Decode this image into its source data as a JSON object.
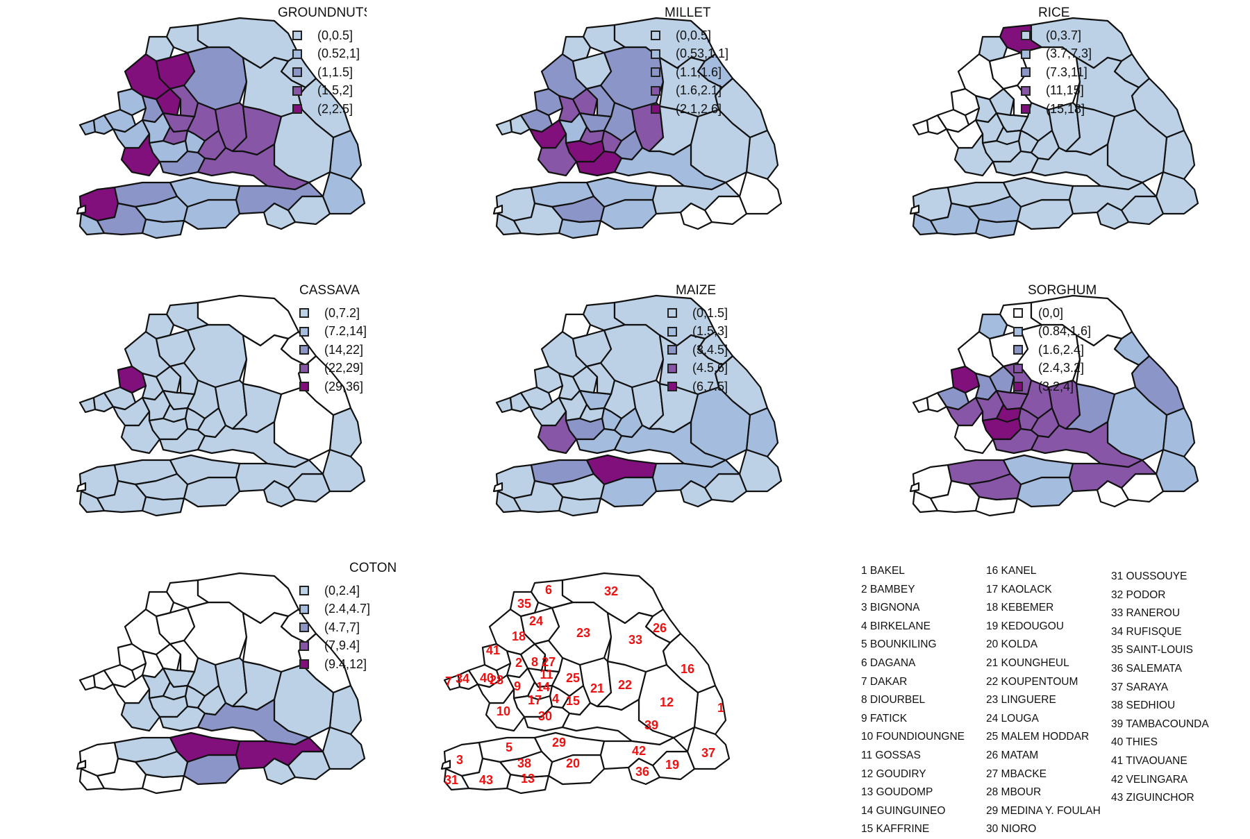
{
  "panels": [
    {
      "id": "groundnuts",
      "title": "GROUNDNUTS",
      "legend": [
        "(0,0.5]",
        "(0.52,1]",
        "(1,1.5]",
        "(1.5,2]",
        "(2,2.5]"
      ],
      "colors": [
        "#bcd0e6",
        "#a4bcdd",
        "#8b95c7",
        "#8856a7",
        "#810f7c"
      ],
      "region_classes": {
        "1": 1,
        "2": 2,
        "3": 4,
        "4": 1,
        "5": 2,
        "6": 0,
        "7": 1,
        "8": 4,
        "9": 1,
        "10": 4,
        "11": 3,
        "12": 0,
        "13": 1,
        "14": 3,
        "15": 3,
        "16": 0,
        "17": 1,
        "18": 4,
        "19": 0,
        "20": 1,
        "21": 3,
        "22": 3,
        "23": 2,
        "24": 4,
        "25": 3,
        "26": 0,
        "27": 3,
        "28": 1,
        "29": 1,
        "30": 2,
        "31": 1,
        "32": 0,
        "33": 0,
        "34": 1,
        "35": 0,
        "36": 0,
        "37": 1,
        "38": 1,
        "39": 3,
        "40": 1,
        "41": 1,
        "42": 2,
        "43": 2
      }
    },
    {
      "id": "millet",
      "title": "MILLET",
      "legend": [
        "(0,0.5]",
        "(0.53,1.1]",
        "(1.1,1.6]",
        "(1.6,2.1]",
        "(2.1,2.6]"
      ],
      "colors": [
        "#bcd0e6",
        "#a4bcdd",
        "#8b95c7",
        "#8856a7",
        "#810f7c"
      ],
      "region_classes": {
        "1": 0,
        "2": 3,
        "3": 0,
        "4": 3,
        "5": 1,
        "6": 0,
        "7": 0,
        "8": 3,
        "9": 1,
        "10": 3,
        "11": 2,
        "12": 0,
        "13": 1,
        "14": 3,
        "15": 2,
        "16": 0,
        "17": 4,
        "18": 2,
        "19": -1,
        "20": 1,
        "21": 3,
        "22": 0,
        "23": 2,
        "24": 0,
        "25": 2,
        "26": 1,
        "27": 2,
        "28": 4,
        "29": 1,
        "30": 4,
        "31": 0,
        "32": 0,
        "33": 0,
        "34": 0,
        "35": 0,
        "36": -1,
        "37": -1,
        "38": 2,
        "39": 1,
        "40": 2,
        "41": 2,
        "42": 0,
        "43": 0
      }
    },
    {
      "id": "rice",
      "title": "RICE",
      "legend": [
        "(0,3.7]",
        "(3.7,7.3]",
        "(7.3,11]",
        "(11,15]",
        "(15,18]"
      ],
      "colors": [
        "#bcd0e6",
        "#a4bcdd",
        "#8b95c7",
        "#8856a7",
        "#810f7c"
      ],
      "region_classes": {
        "1": 0,
        "2": 0,
        "3": 0,
        "4": 0,
        "5": 0,
        "6": 4,
        "7": -1,
        "8": 0,
        "9": 0,
        "10": 0,
        "11": 0,
        "12": 0,
        "13": 1,
        "14": 0,
        "15": 0,
        "16": 0,
        "17": 0,
        "18": -1,
        "19": 0,
        "20": 0,
        "21": 0,
        "22": 0,
        "23": -1,
        "24": -1,
        "25": 0,
        "26": 0,
        "27": -1,
        "28": -1,
        "29": 0,
        "30": 0,
        "31": 1,
        "32": 0,
        "33": 0,
        "34": -1,
        "35": 0,
        "36": 0,
        "37": 0,
        "38": 1,
        "39": 0,
        "40": -1,
        "41": -1,
        "42": 0,
        "43": 1
      }
    },
    {
      "id": "cassava",
      "title": "CASSAVA",
      "legend": [
        "(0,7.2]",
        "(7.2,14]",
        "(14,22]",
        "(22,29]",
        "(29,36]"
      ],
      "colors": [
        "#bcd0e6",
        "#a4bcdd",
        "#8b95c7",
        "#8856a7",
        "#810f7c"
      ],
      "region_classes": {
        "1": 0,
        "2": 0,
        "3": 0,
        "4": 0,
        "5": 0,
        "6": 0,
        "7": 0,
        "8": 0,
        "9": 0,
        "10": 0,
        "11": 0,
        "12": -1,
        "13": 0,
        "14": 0,
        "15": 0,
        "16": -1,
        "17": 0,
        "18": 0,
        "19": 0,
        "20": 0,
        "21": 0,
        "22": 0,
        "23": 0,
        "24": 0,
        "25": 0,
        "26": -1,
        "27": 0,
        "28": 0,
        "29": 0,
        "30": 0,
        "31": 0,
        "32": -1,
        "33": -1,
        "34": 0,
        "35": 0,
        "36": 0,
        "37": 0,
        "38": 0,
        "39": 0,
        "40": 0,
        "41": 4,
        "42": 0,
        "43": 0
      }
    },
    {
      "id": "maize",
      "title": "MAIZE",
      "legend": [
        "(0,1.5]",
        "(1.5,3]",
        "(3,4.5]",
        "(4.5,6]",
        "(6,7.5]"
      ],
      "colors": [
        "#bcd0e6",
        "#a4bcdd",
        "#8b95c7",
        "#8856a7",
        "#810f7c"
      ],
      "region_classes": {
        "1": 1,
        "2": 0,
        "3": 0,
        "4": 1,
        "5": 2,
        "6": 0,
        "7": 0,
        "8": 0,
        "9": 0,
        "10": 3,
        "11": 1,
        "12": 1,
        "13": 0,
        "14": 0,
        "15": 1,
        "16": 0,
        "17": 2,
        "18": 0,
        "19": 0,
        "20": 1,
        "21": 0,
        "22": 0,
        "23": 0,
        "24": 0,
        "25": 0,
        "26": 0,
        "27": 0,
        "28": 0,
        "29": 4,
        "30": 1,
        "31": 0,
        "32": 0,
        "33": 0,
        "34": 0,
        "35": -1,
        "36": 0,
        "37": 0,
        "38": 0,
        "39": 1,
        "40": 0,
        "41": 0,
        "42": 1,
        "43": 0
      }
    },
    {
      "id": "sorghum",
      "title": "SORGHUM",
      "legend": [
        "(0,0]",
        "(0.84,1.6]",
        "(1.6,2.4]",
        "(2.4,3.2]",
        "(3.2,4]"
      ],
      "colors": [
        "#ffffff",
        "#a4bcdd",
        "#8b95c7",
        "#8856a7",
        "#810f7c"
      ],
      "region_classes": {
        "1": 1,
        "2": 2,
        "3": 0,
        "4": 3,
        "5": 3,
        "6": 0,
        "7": 0,
        "8": 2,
        "9": 3,
        "10": 0,
        "11": 3,
        "12": 1,
        "13": 0,
        "14": 4,
        "15": 3,
        "16": 2,
        "17": 4,
        "18": 0,
        "19": 0,
        "20": 1,
        "21": 3,
        "22": 2,
        "23": 0,
        "24": 0,
        "25": 3,
        "26": 1,
        "27": 3,
        "28": 3,
        "29": 1,
        "30": 3,
        "31": 0,
        "32": 0,
        "33": 0,
        "34": 0,
        "35": 1,
        "36": 0,
        "37": 1,
        "38": 3,
        "39": 3,
        "40": 2,
        "41": 4,
        "42": 3,
        "43": 0
      }
    },
    {
      "id": "coton",
      "title": "COTON",
      "legend": [
        "(0,2.4]",
        "(2.4,4.7]",
        "(4.7,7]",
        "(7,9.4]",
        "(9.4,12]"
      ],
      "colors": [
        "#bcd0e6",
        "#a4bcdd",
        "#8b95c7",
        "#8856a7",
        "#810f7c"
      ],
      "region_classes": {
        "1": 0,
        "2": -1,
        "3": -1,
        "4": 0,
        "5": 0,
        "6": -1,
        "7": -1,
        "8": -1,
        "9": 0,
        "10": 0,
        "11": 0,
        "12": 0,
        "13": -1,
        "14": 0,
        "15": 0,
        "16": -1,
        "17": 0,
        "18": -1,
        "19": 0,
        "20": 2,
        "21": 0,
        "22": 0,
        "23": -1,
        "24": -1,
        "25": 0,
        "26": -1,
        "27": -1,
        "28": -1,
        "29": 4,
        "30": 0,
        "31": -1,
        "32": -1,
        "33": -1,
        "34": -1,
        "35": -1,
        "36": 0,
        "37": 0,
        "38": 0,
        "39": 2,
        "40": -1,
        "41": -1,
        "42": 4,
        "43": -1
      }
    }
  ],
  "key": [
    "1 BAKEL",
    "2 BAMBEY",
    "3 BIGNONA",
    "4 BIRKELANE",
    "5 BOUNKILING",
    "6 DAGANA",
    "7 DAKAR",
    "8 DIOURBEL",
    "9 FATICK",
    "10 FOUNDIOUNGNE",
    "11 GOSSAS",
    "12 GOUDIRY",
    "13 GOUDOMP",
    "14 GUINGUINEO",
    "15 KAFFRINE",
    "16 KANEL",
    "17 KAOLACK",
    "18 KEBEMER",
    "19 KEDOUGOU",
    "20 KOLDA",
    "21 KOUNGHEUL",
    "22 KOUPENTOUM",
    "23 LINGUERE",
    "24 LOUGA",
    "25 MALEM HODDAR",
    "26 MATAM",
    "27 MBACKE",
    "28 MBOUR",
    "29 MEDINA Y. FOULAH",
    "30 NIORO",
    "31 OUSSOUYE",
    "32 PODOR",
    "33 RANEROU",
    "34 RUFISQUE",
    "35 SAINT-LOUIS",
    "36 SALEMATA",
    "37 SARAYA",
    "38 SEDHIOU",
    "39 TAMBACOUNDA",
    "40 THIES",
    "41 TIVAOUANE",
    "42 VELINGARA",
    "43 ZIGUINCHOR"
  ],
  "number_map_labels": [
    "1",
    "2",
    "3",
    "4",
    "5",
    "6",
    "7",
    "8",
    "9",
    "10",
    "11",
    "12",
    "13",
    "14",
    "15",
    "16",
    "17",
    "18",
    "19",
    "20",
    "21",
    "22",
    "23",
    "24",
    "25",
    "26",
    "27",
    "28",
    "29",
    "30",
    "31",
    "32",
    "33",
    "34",
    "35",
    "36",
    "37",
    "38",
    "39",
    "40",
    "41",
    "42",
    "43"
  ],
  "empty_fill": "#ffffff",
  "label_color": "#ee1111"
}
